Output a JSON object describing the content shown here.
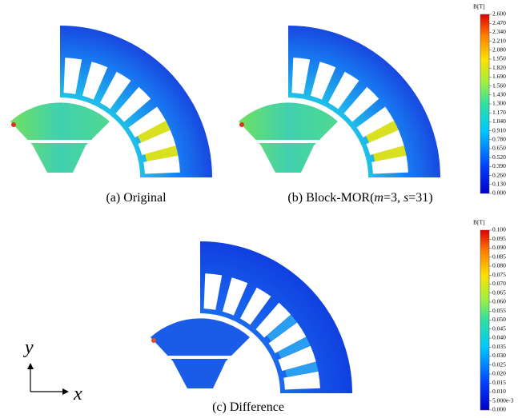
{
  "panels": [
    {
      "caption": [
        "(a) Original"
      ]
    },
    {
      "caption": [
        "(b) Block-MOR(",
        "m",
        "=3, ",
        "s",
        "=31)"
      ]
    },
    {
      "caption": [
        "(c) Difference"
      ]
    }
  ],
  "colorbars": [
    {
      "title": "B[T]",
      "labels": [
        "2.600",
        "2.470",
        "2.340",
        "2.210",
        "2.080",
        "1.950",
        "1.820",
        "1.690",
        "1.560",
        "1.430",
        "1.300",
        "1.170",
        "1.040",
        "0.910",
        "0.780",
        "0.650",
        "0.520",
        "0.390",
        "0.260",
        "0.130",
        "0.000"
      ]
    },
    {
      "title": "B[T]",
      "labels": [
        "0.100",
        "0.095",
        "0.090",
        "0.085",
        "0.080",
        "0.075",
        "0.070",
        "0.065",
        "0.060",
        "0.055",
        "0.050",
        "0.045",
        "0.040",
        "0.035",
        "0.030",
        "0.025",
        "0.020",
        "0.015",
        "0.010",
        "5.000e-3",
        "0.000"
      ]
    }
  ],
  "axes": {
    "y": "y",
    "x": "x"
  }
}
